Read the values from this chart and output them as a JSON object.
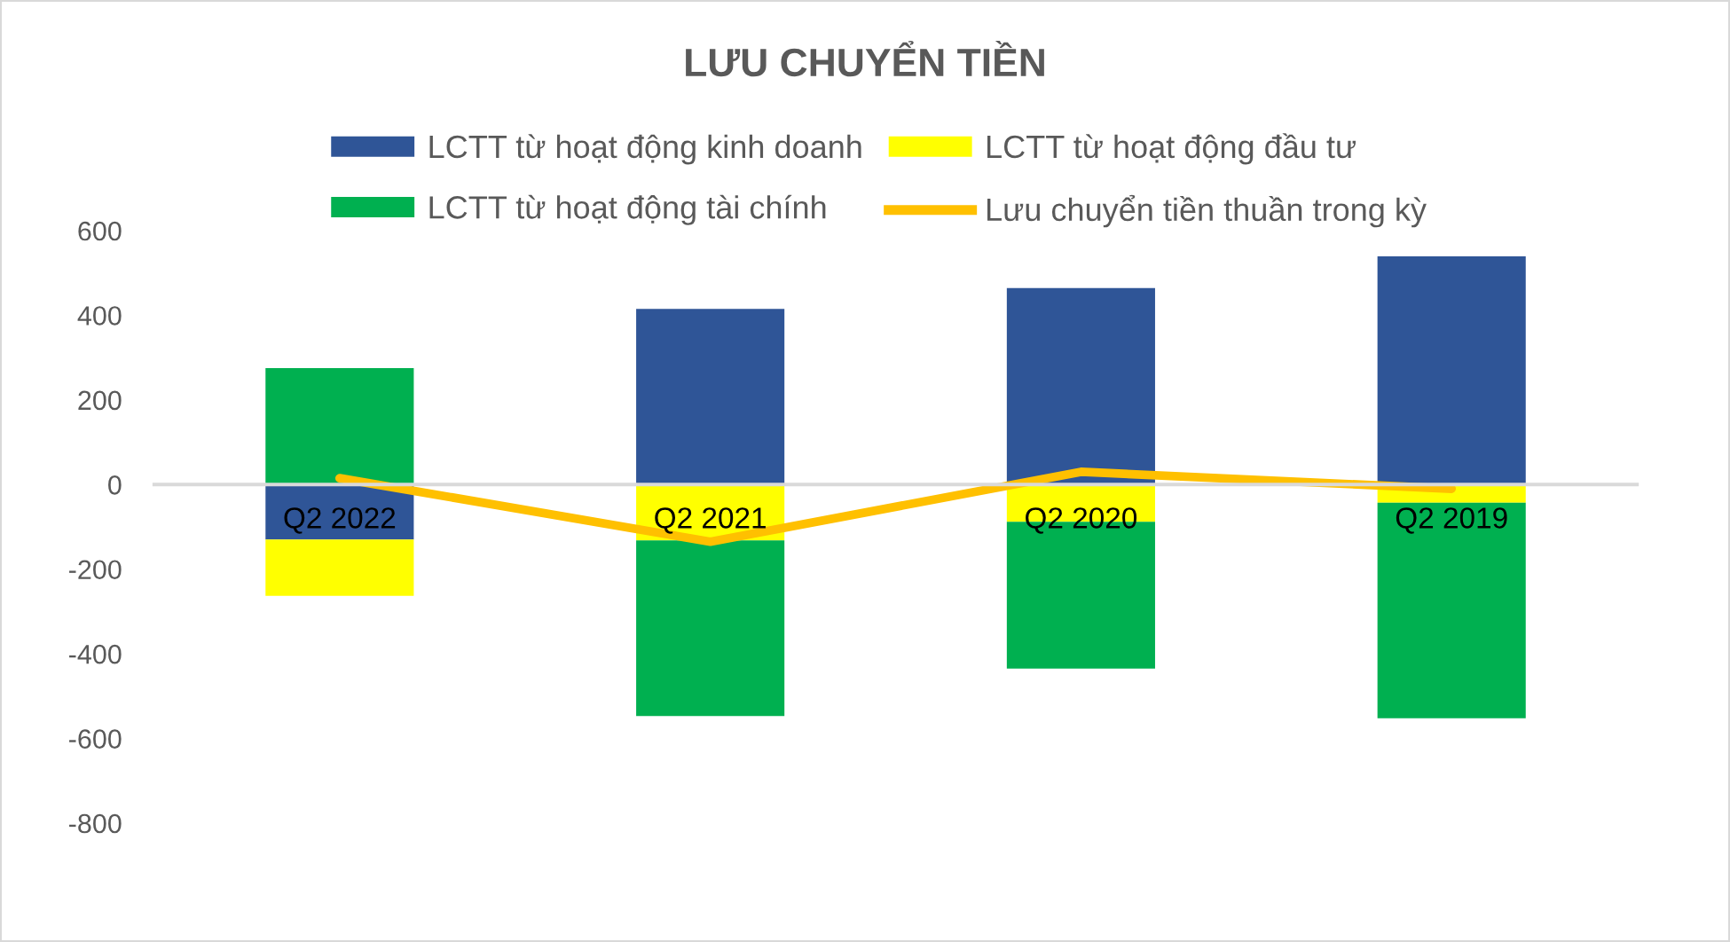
{
  "chart_data": {
    "type": "bar",
    "stacked": true,
    "title": "LƯU CHUYỂN TIỀN",
    "categories": [
      "Q2 2022",
      "Q2 2021",
      "Q2 2020",
      "Q2 2019"
    ],
    "series": [
      {
        "name": "LCTT từ hoạt động kinh doanh",
        "color": "#2f5597",
        "values": [
          -130,
          415,
          464,
          539
        ]
      },
      {
        "name": "LCTT từ hoạt động đầu tư",
        "color": "#ffff00",
        "values": [
          -133,
          -132,
          -88,
          -43
        ]
      },
      {
        "name": "LCTT từ hoạt động tài chính",
        "color": "#00b050",
        "values": [
          275,
          -415,
          -347,
          -509
        ]
      },
      {
        "name": "Lưu chuyển tiền thuần trong kỳ",
        "type": "line",
        "color": "#ffc000",
        "values": [
          15,
          -135,
          30,
          -10
        ]
      }
    ],
    "ylim": [
      -800,
      600
    ],
    "yticks": [
      -800,
      -600,
      -400,
      -200,
      0,
      200,
      400,
      600
    ],
    "legend": "top"
  }
}
